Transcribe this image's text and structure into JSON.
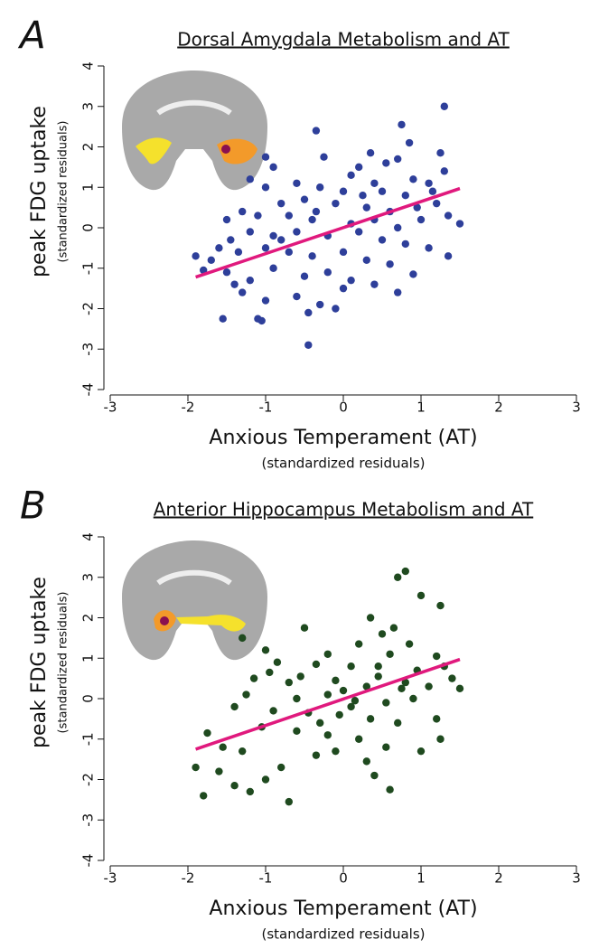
{
  "chart_data": [
    {
      "type": "scatter",
      "panel_label": "A",
      "title": "Dorsal Amygdala Metabolism and AT",
      "x_label": "Anxious Temperament (AT)",
      "x_label_sub": "(standardized residuals)",
      "y_label": "peak FDG uptake",
      "y_label_sub": "(standardized residuals)",
      "xlim": [
        -3,
        3
      ],
      "xticks": [
        -3,
        -2,
        -1,
        0,
        1,
        2,
        3
      ],
      "ylim": [
        -4,
        4
      ],
      "yticks": [
        -4,
        -3,
        -2,
        -1,
        0,
        1,
        2,
        3,
        4
      ],
      "color": "#2e3f9a",
      "x": [
        1.3,
        0.75,
        -0.35,
        0.85,
        0.35,
        0.55,
        1.25,
        -1.0,
        0.7,
        0.2,
        -0.25,
        -0.9,
        0.1,
        0.9,
        1.1,
        1.3,
        0.4,
        -0.6,
        -1.2,
        -1.0,
        -0.3,
        0.0,
        0.5,
        0.8,
        1.2,
        1.35,
        1.5,
        -0.8,
        -0.5,
        -0.1,
        0.3,
        0.6,
        0.95,
        -1.1,
        -1.3,
        -1.5,
        -0.7,
        -0.4,
        0.1,
        0.4,
        0.7,
        1.0,
        -1.9,
        -1.8,
        -1.6,
        -1.45,
        -1.2,
        -0.9,
        -0.6,
        -0.2,
        0.2,
        0.5,
        0.8,
        1.1,
        1.35,
        -1.7,
        -1.35,
        -1.0,
        -0.7,
        -0.4,
        0.0,
        0.3,
        0.6,
        -1.5,
        -1.2,
        -0.9,
        -0.5,
        -0.2,
        0.1,
        0.4,
        0.7,
        -1.3,
        -1.0,
        -0.6,
        -0.3,
        0.0,
        -1.55,
        -1.1,
        -1.05,
        -0.45,
        -0.1,
        -0.45,
        0.9,
        -0.35,
        0.25,
        -0.8,
        1.15,
        -1.4
      ],
      "values": [
        3.0,
        2.55,
        2.4,
        2.1,
        1.85,
        1.6,
        1.85,
        1.75,
        1.7,
        1.5,
        1.75,
        1.5,
        1.3,
        1.2,
        1.1,
        1.4,
        1.1,
        1.1,
        1.2,
        1.0,
        1.0,
        0.9,
        0.9,
        0.8,
        0.6,
        0.3,
        0.1,
        0.6,
        0.7,
        0.6,
        0.5,
        0.4,
        0.5,
        0.3,
        0.4,
        0.2,
        0.3,
        0.2,
        0.1,
        0.2,
        0.0,
        0.2,
        -0.7,
        -1.05,
        -0.5,
        -0.3,
        -0.1,
        -0.2,
        -0.1,
        -0.2,
        -0.1,
        -0.3,
        -0.4,
        -0.5,
        -0.7,
        -0.8,
        -0.6,
        -0.5,
        -0.6,
        -0.7,
        -0.6,
        -0.8,
        -0.9,
        -1.1,
        -1.3,
        -1.0,
        -1.2,
        -1.1,
        -1.3,
        -1.4,
        -1.6,
        -1.6,
        -1.8,
        -1.7,
        -1.9,
        -1.5,
        -2.25,
        -2.25,
        -2.3,
        -2.1,
        -2.0,
        -2.9,
        -1.15,
        0.4,
        0.8,
        -0.3,
        0.9,
        -1.4
      ],
      "fit_line": {
        "x": [
          -1.9,
          1.5
        ],
        "y": [
          -1.22,
          0.97
        ],
        "color": "#e0197d"
      }
    },
    {
      "type": "scatter",
      "panel_label": "B",
      "title": "Anterior Hippocampus Metabolism and AT",
      "x_label": "Anxious Temperament (AT)",
      "x_label_sub": "(standardized residuals)",
      "y_label": "peak FDG uptake",
      "y_label_sub": "(standardized residuals)",
      "xlim": [
        -3,
        3
      ],
      "xticks": [
        -3,
        -2,
        -1,
        0,
        1,
        2,
        3
      ],
      "ylim": [
        -4,
        4
      ],
      "yticks": [
        -4,
        -3,
        -2,
        -1,
        0,
        1,
        2,
        3,
        4
      ],
      "color": "#1f4a1f",
      "x": [
        0.8,
        0.7,
        1.0,
        1.25,
        0.35,
        -0.5,
        0.5,
        -1.3,
        0.2,
        0.85,
        -1.0,
        -0.2,
        0.6,
        1.2,
        -0.85,
        -0.35,
        0.1,
        0.45,
        0.95,
        1.4,
        1.5,
        -1.15,
        -0.7,
        -0.1,
        0.3,
        0.75,
        1.1,
        -1.25,
        -0.6,
        -0.2,
        0.15,
        0.55,
        0.9,
        -1.4,
        -0.9,
        -0.45,
        -0.05,
        0.35,
        0.7,
        1.2,
        -1.75,
        -1.05,
        -0.6,
        -0.2,
        0.2,
        0.55,
        -1.9,
        -1.8,
        -1.6,
        -1.4,
        -1.2,
        -1.0,
        -0.8,
        -0.7,
        -0.35,
        -0.1,
        0.3,
        0.6,
        0.4,
        1.0,
        1.25,
        -1.55,
        -1.3,
        0.0,
        -0.3,
        0.8,
        -0.95,
        0.65,
        0.1,
        -0.55,
        1.3,
        0.45
      ],
      "values": [
        3.15,
        3.0,
        2.55,
        2.3,
        2.0,
        1.75,
        1.6,
        1.5,
        1.35,
        1.35,
        1.2,
        1.1,
        1.1,
        1.05,
        0.9,
        0.85,
        0.8,
        0.8,
        0.7,
        0.5,
        0.25,
        0.5,
        0.4,
        0.45,
        0.3,
        0.25,
        0.3,
        0.1,
        0.0,
        0.1,
        -0.05,
        -0.1,
        0.0,
        -0.2,
        -0.3,
        -0.35,
        -0.4,
        -0.5,
        -0.6,
        -0.5,
        -0.85,
        -0.7,
        -0.8,
        -0.9,
        -1.0,
        -1.2,
        -1.7,
        -2.4,
        -1.8,
        -2.15,
        -2.3,
        -2.0,
        -1.7,
        -2.55,
        -1.4,
        -1.3,
        -1.55,
        -2.25,
        -1.9,
        -1.3,
        -1.0,
        -1.2,
        -1.3,
        0.2,
        -0.6,
        0.4,
        0.65,
        1.75,
        -0.2,
        0.55,
        0.8,
        0.55
      ],
      "fit_line": {
        "x": [
          -1.9,
          1.5
        ],
        "y": [
          -1.25,
          0.97
        ],
        "color": "#e0197d"
      }
    }
  ]
}
